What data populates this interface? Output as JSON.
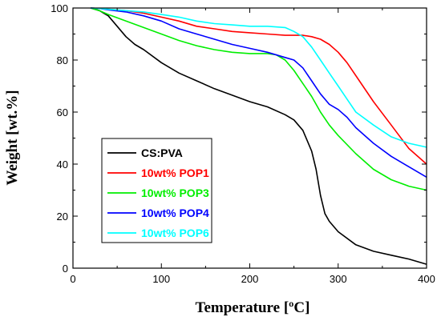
{
  "chart_data": {
    "type": "line",
    "xlabel": "Temperature [ºC]",
    "ylabel": "Weight [wt.%]",
    "xlim": [
      0,
      400
    ],
    "ylim": [
      0,
      100
    ],
    "xticks": [
      0,
      100,
      200,
      300,
      400
    ],
    "yticks": [
      0,
      20,
      40,
      60,
      80,
      100
    ],
    "grid": false,
    "legend_position": "center-left",
    "series": [
      {
        "name": "CS:PVA",
        "color": "#000000",
        "x": [
          20,
          30,
          40,
          50,
          60,
          70,
          80,
          100,
          120,
          140,
          160,
          180,
          200,
          220,
          240,
          250,
          260,
          270,
          275,
          280,
          285,
          290,
          300,
          320,
          340,
          360,
          380,
          400
        ],
        "y": [
          100,
          99,
          97,
          93,
          89,
          86,
          84,
          79,
          75,
          72,
          69,
          66.5,
          64,
          62,
          59,
          57,
          53,
          45,
          38,
          28,
          21,
          18,
          14,
          9,
          6.5,
          5,
          3.5,
          1.5
        ]
      },
      {
        "name": "10wt% POP1",
        "color": "#ff0000",
        "x": [
          20,
          30,
          40,
          60,
          80,
          100,
          120,
          140,
          160,
          180,
          200,
          220,
          240,
          260,
          270,
          280,
          290,
          300,
          310,
          320,
          340,
          360,
          380,
          400
        ],
        "y": [
          100,
          99.8,
          99.5,
          99,
          98,
          96.5,
          95,
          93,
          92,
          91,
          90.5,
          90,
          89.5,
          89.5,
          89,
          88,
          86,
          83,
          79,
          74,
          64,
          55,
          46,
          40
        ]
      },
      {
        "name": "10wt% POP3",
        "color": "#00ee00",
        "x": [
          20,
          30,
          40,
          60,
          80,
          100,
          120,
          140,
          160,
          180,
          200,
          220,
          230,
          240,
          250,
          260,
          270,
          280,
          290,
          300,
          320,
          340,
          360,
          380,
          400
        ],
        "y": [
          100,
          99,
          97.5,
          95,
          92.5,
          90,
          87.5,
          85.5,
          84,
          83,
          82.5,
          82.5,
          82,
          80,
          76,
          71,
          66,
          60,
          55,
          51,
          44,
          38,
          34,
          31.5,
          30
        ]
      },
      {
        "name": "10wt% POP4",
        "color": "#0000ff",
        "x": [
          20,
          30,
          40,
          60,
          80,
          100,
          120,
          140,
          160,
          180,
          200,
          220,
          240,
          250,
          260,
          270,
          280,
          290,
          300,
          310,
          320,
          340,
          360,
          380,
          400
        ],
        "y": [
          100,
          99.8,
          99.3,
          98.5,
          97,
          95,
          92,
          90,
          88,
          86,
          84.5,
          83,
          81,
          80,
          77,
          72,
          67,
          63,
          61,
          58,
          54,
          48,
          43,
          39,
          35
        ]
      },
      {
        "name": "10wt% POP6",
        "color": "#00ffff",
        "x": [
          20,
          30,
          40,
          60,
          80,
          100,
          120,
          140,
          160,
          180,
          200,
          220,
          240,
          250,
          260,
          270,
          280,
          290,
          300,
          310,
          320,
          340,
          360,
          380,
          400
        ],
        "y": [
          100,
          99.8,
          99.5,
          99,
          98.5,
          97.5,
          96.5,
          95,
          94,
          93.5,
          93,
          93,
          92.5,
          91,
          89,
          85,
          80,
          75,
          70,
          65,
          60,
          55,
          50.5,
          48,
          46.5
        ]
      }
    ]
  }
}
